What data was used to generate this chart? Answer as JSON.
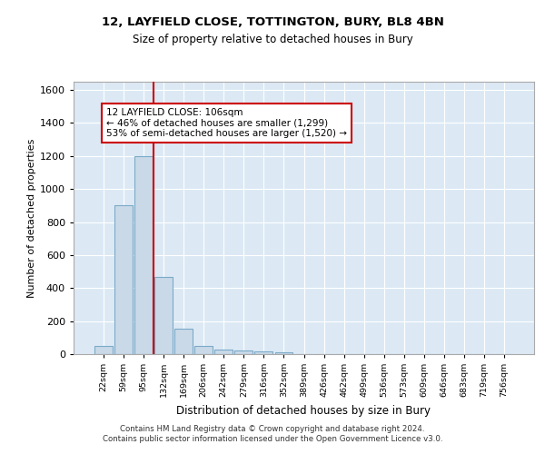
{
  "title1": "12, LAYFIELD CLOSE, TOTTINGTON, BURY, BL8 4BN",
  "title2": "Size of property relative to detached houses in Bury",
  "xlabel": "Distribution of detached houses by size in Bury",
  "ylabel": "Number of detached properties",
  "categories": [
    "22sqm",
    "59sqm",
    "95sqm",
    "132sqm",
    "169sqm",
    "206sqm",
    "242sqm",
    "279sqm",
    "316sqm",
    "352sqm",
    "389sqm",
    "426sqm",
    "462sqm",
    "499sqm",
    "536sqm",
    "573sqm",
    "609sqm",
    "646sqm",
    "683sqm",
    "719sqm",
    "756sqm"
  ],
  "values": [
    50,
    900,
    1200,
    470,
    155,
    50,
    30,
    20,
    15,
    10,
    0,
    0,
    0,
    0,
    0,
    0,
    0,
    0,
    0,
    0,
    0
  ],
  "bar_color": "#c9d9e8",
  "bar_edge_color": "#7aaac8",
  "vline_color": "#cc0000",
  "annotation_text": "12 LAYFIELD CLOSE: 106sqm\n← 46% of detached houses are smaller (1,299)\n53% of semi-detached houses are larger (1,520) →",
  "annotation_box_color": "#ffffff",
  "annotation_box_edge": "#cc0000",
  "ylim": [
    0,
    1650
  ],
  "yticks": [
    0,
    200,
    400,
    600,
    800,
    1000,
    1200,
    1400,
    1600
  ],
  "background_color": "#dce9f5",
  "footer": "Contains HM Land Registry data © Crown copyright and database right 2024.\nContains public sector information licensed under the Open Government Licence v3.0.",
  "title1_fontsize": 9.5,
  "title2_fontsize": 8.5
}
